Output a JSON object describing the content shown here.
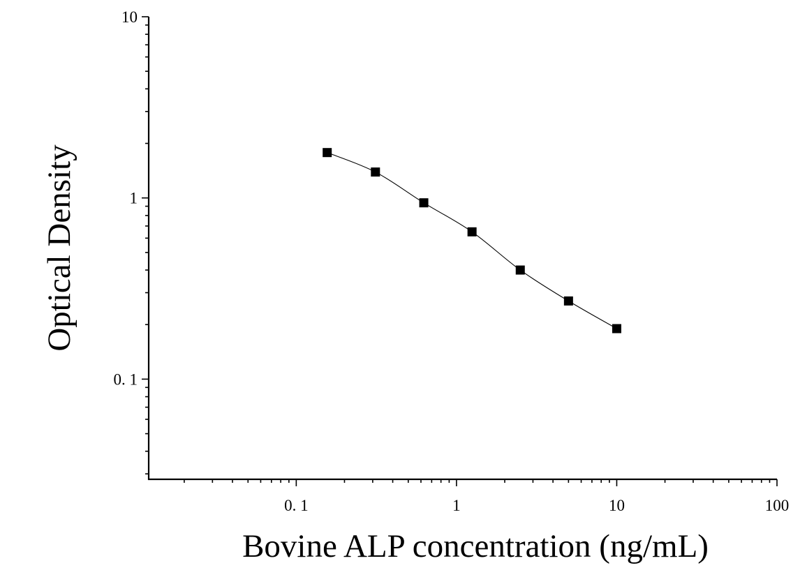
{
  "chart_data": {
    "type": "scatter",
    "title": "",
    "xlabel": "Bovine ALP concentration (ng/mL)",
    "ylabel": "Optical Density",
    "x_scale": "log",
    "y_scale": "log",
    "xlim": [
      0.012,
      100
    ],
    "ylim": [
      0.028,
      10
    ],
    "x_tick_labels": [
      {
        "value": 0.1,
        "label": "0. 1"
      },
      {
        "value": 1,
        "label": "1"
      },
      {
        "value": 10,
        "label": "10"
      },
      {
        "value": 100,
        "label": "100"
      }
    ],
    "y_tick_labels": [
      {
        "value": 0.1,
        "label": "0. 1"
      },
      {
        "value": 1,
        "label": "1"
      },
      {
        "value": 10,
        "label": "10"
      }
    ],
    "grid": false,
    "legend": "none",
    "marker": "square",
    "fit_curve": "smooth",
    "series": [
      {
        "x": [
          0.156,
          0.312,
          0.625,
          1.25,
          2.5,
          5,
          10
        ],
        "y": [
          1.78,
          1.39,
          0.94,
          0.65,
          0.4,
          0.27,
          0.19
        ]
      }
    ]
  }
}
